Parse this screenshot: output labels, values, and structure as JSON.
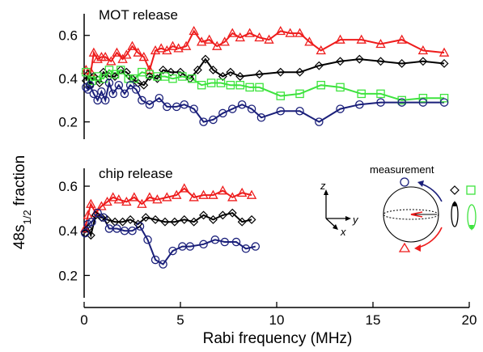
{
  "colors": {
    "measurement_navy": "#1a1f7a",
    "black": "#000000",
    "green": "#3ee33e",
    "red": "#ee1c1c"
  },
  "chart_data": {
    "type": "line",
    "xlabel": "Rabi frequency (MHz)",
    "ylabel": "48s",
    "ylabel_sub": "1/2",
    "ylabel_tail": " fraction",
    "xlim": [
      0,
      20
    ],
    "xticks": [
      0,
      5,
      10,
      15,
      20
    ],
    "panels": [
      {
        "title": "MOT release",
        "ylim": [
          0.12,
          0.7
        ],
        "yticks": [
          0.2,
          0.4,
          0.6
        ],
        "series": [
          {
            "color": "#ee1c1c",
            "marker": "triangle",
            "x": [
              0.1,
              0.35,
              0.5,
              0.7,
              0.9,
              1.1,
              1.4,
              1.7,
              2.0,
              2.2,
              2.5,
              2.8,
              3.1,
              3.4,
              3.7,
              4.0,
              4.3,
              4.6,
              4.9,
              5.3,
              5.7,
              6.1,
              6.5,
              6.9,
              7.3,
              7.7,
              8.1,
              8.6,
              9.1,
              9.6,
              10.2,
              10.7,
              11.2,
              11.7,
              12.3,
              13.3,
              14.4,
              15.4,
              16.5,
              17.6,
              18.7
            ],
            "y": [
              0.44,
              0.43,
              0.52,
              0.49,
              0.5,
              0.5,
              0.48,
              0.52,
              0.49,
              0.51,
              0.55,
              0.52,
              0.5,
              0.44,
              0.53,
              0.54,
              0.53,
              0.55,
              0.54,
              0.55,
              0.62,
              0.57,
              0.58,
              0.55,
              0.57,
              0.61,
              0.59,
              0.61,
              0.59,
              0.58,
              0.62,
              0.61,
              0.61,
              0.57,
              0.53,
              0.58,
              0.58,
              0.56,
              0.58,
              0.53,
              0.52
            ]
          },
          {
            "color": "#000000",
            "marker": "diamond",
            "x": [
              0.1,
              0.2,
              0.3,
              0.5,
              0.8,
              1.0,
              1.3,
              1.6,
              1.9,
              2.2,
              2.5,
              2.8,
              3.1,
              3.4,
              3.8,
              4.1,
              4.5,
              5.0,
              5.5,
              5.9,
              6.3,
              6.7,
              7.2,
              7.6,
              8.1,
              9.1,
              10.2,
              11.2,
              12.2,
              13.3,
              14.3,
              15.4,
              16.5,
              17.6,
              18.7
            ],
            "y": [
              0.39,
              0.42,
              0.37,
              0.41,
              0.38,
              0.43,
              0.41,
              0.41,
              0.44,
              0.43,
              0.4,
              0.38,
              0.37,
              0.41,
              0.4,
              0.44,
              0.43,
              0.43,
              0.4,
              0.44,
              0.49,
              0.44,
              0.41,
              0.43,
              0.41,
              0.42,
              0.43,
              0.43,
              0.46,
              0.48,
              0.49,
              0.48,
              0.47,
              0.48,
              0.47
            ]
          },
          {
            "color": "#3ee33e",
            "marker": "square",
            "x": [
              0.1,
              0.4,
              0.7,
              1.0,
              1.3,
              1.6,
              1.9,
              2.3,
              2.6,
              3.0,
              3.4,
              3.8,
              4.2,
              4.6,
              5.1,
              5.6,
              6.1,
              6.6,
              7.1,
              7.6,
              8.1,
              8.6,
              9.1,
              10.2,
              11.2,
              12.3,
              13.3,
              14.4,
              15.4,
              16.5,
              17.6,
              18.7
            ],
            "y": [
              0.43,
              0.39,
              0.41,
              0.4,
              0.44,
              0.42,
              0.44,
              0.4,
              0.4,
              0.43,
              0.42,
              0.41,
              0.41,
              0.4,
              0.41,
              0.4,
              0.37,
              0.38,
              0.38,
              0.37,
              0.37,
              0.36,
              0.36,
              0.32,
              0.33,
              0.37,
              0.36,
              0.33,
              0.33,
              0.3,
              0.31,
              0.31
            ]
          },
          {
            "color": "#1a1f7a",
            "marker": "circle",
            "x": [
              0.1,
              0.2,
              0.3,
              0.5,
              0.7,
              0.9,
              1.1,
              1.3,
              1.5,
              1.8,
              2.1,
              2.4,
              2.7,
              3.0,
              3.4,
              3.9,
              4.3,
              4.8,
              5.2,
              5.7,
              6.2,
              6.7,
              7.2,
              7.7,
              8.2,
              8.7,
              9.2,
              10.2,
              11.2,
              12.2,
              13.3,
              14.3,
              15.4,
              16.5,
              17.6,
              18.7
            ],
            "y": [
              0.36,
              0.35,
              0.37,
              0.33,
              0.3,
              0.34,
              0.3,
              0.38,
              0.33,
              0.37,
              0.33,
              0.37,
              0.35,
              0.3,
              0.28,
              0.31,
              0.27,
              0.27,
              0.28,
              0.26,
              0.2,
              0.21,
              0.24,
              0.26,
              0.28,
              0.26,
              0.22,
              0.25,
              0.25,
              0.2,
              0.26,
              0.28,
              0.29,
              0.29,
              0.29,
              0.29
            ]
          }
        ]
      },
      {
        "title": "chip release",
        "ylim": [
          0.1,
          0.68
        ],
        "yticks": [
          0.2,
          0.4,
          0.6
        ],
        "series": [
          {
            "color": "#ee1c1c",
            "marker": "triangle",
            "x": [
              0.05,
              0.2,
              0.35,
              0.6,
              0.9,
              1.2,
              1.5,
              1.8,
              2.2,
              2.6,
              3.0,
              3.4,
              3.8,
              4.3,
              4.8,
              5.2,
              5.7,
              6.2,
              6.7,
              7.2,
              7.7,
              8.2,
              8.7
            ],
            "y": [
              0.41,
              0.47,
              0.52,
              0.48,
              0.51,
              0.53,
              0.55,
              0.54,
              0.53,
              0.55,
              0.52,
              0.55,
              0.54,
              0.55,
              0.56,
              0.59,
              0.55,
              0.56,
              0.56,
              0.58,
              0.55,
              0.57,
              0.56
            ]
          },
          {
            "color": "#000000",
            "marker": "diamond",
            "x": [
              0.05,
              0.2,
              0.35,
              0.6,
              0.9,
              1.2,
              1.6,
              2.0,
              2.4,
              2.8,
              3.2,
              3.7,
              4.2,
              4.7,
              5.2,
              5.7,
              6.2,
              6.7,
              7.2,
              7.7,
              8.2,
              8.7
            ],
            "y": [
              0.39,
              0.41,
              0.38,
              0.47,
              0.46,
              0.45,
              0.44,
              0.44,
              0.45,
              0.43,
              0.46,
              0.45,
              0.44,
              0.44,
              0.45,
              0.44,
              0.47,
              0.45,
              0.47,
              0.48,
              0.44,
              0.45
            ]
          },
          {
            "color": "#1a1f7a",
            "marker": "circle",
            "x": [
              0.05,
              0.2,
              0.4,
              0.7,
              1.0,
              1.3,
              1.7,
              2.1,
              2.5,
              2.9,
              3.3,
              3.7,
              4.1,
              4.6,
              5.1,
              5.5,
              6.2,
              6.8,
              7.3,
              7.9,
              8.4,
              8.9
            ],
            "y": [
              0.39,
              0.43,
              0.44,
              0.48,
              0.46,
              0.41,
              0.41,
              0.4,
              0.4,
              0.42,
              0.36,
              0.27,
              0.25,
              0.31,
              0.33,
              0.33,
              0.34,
              0.36,
              0.35,
              0.35,
              0.32,
              0.33
            ]
          }
        ]
      }
    ]
  },
  "inset": {
    "axis_z": "z",
    "axis_y": "y",
    "axis_x": "x",
    "measurement_label": "measurement"
  }
}
